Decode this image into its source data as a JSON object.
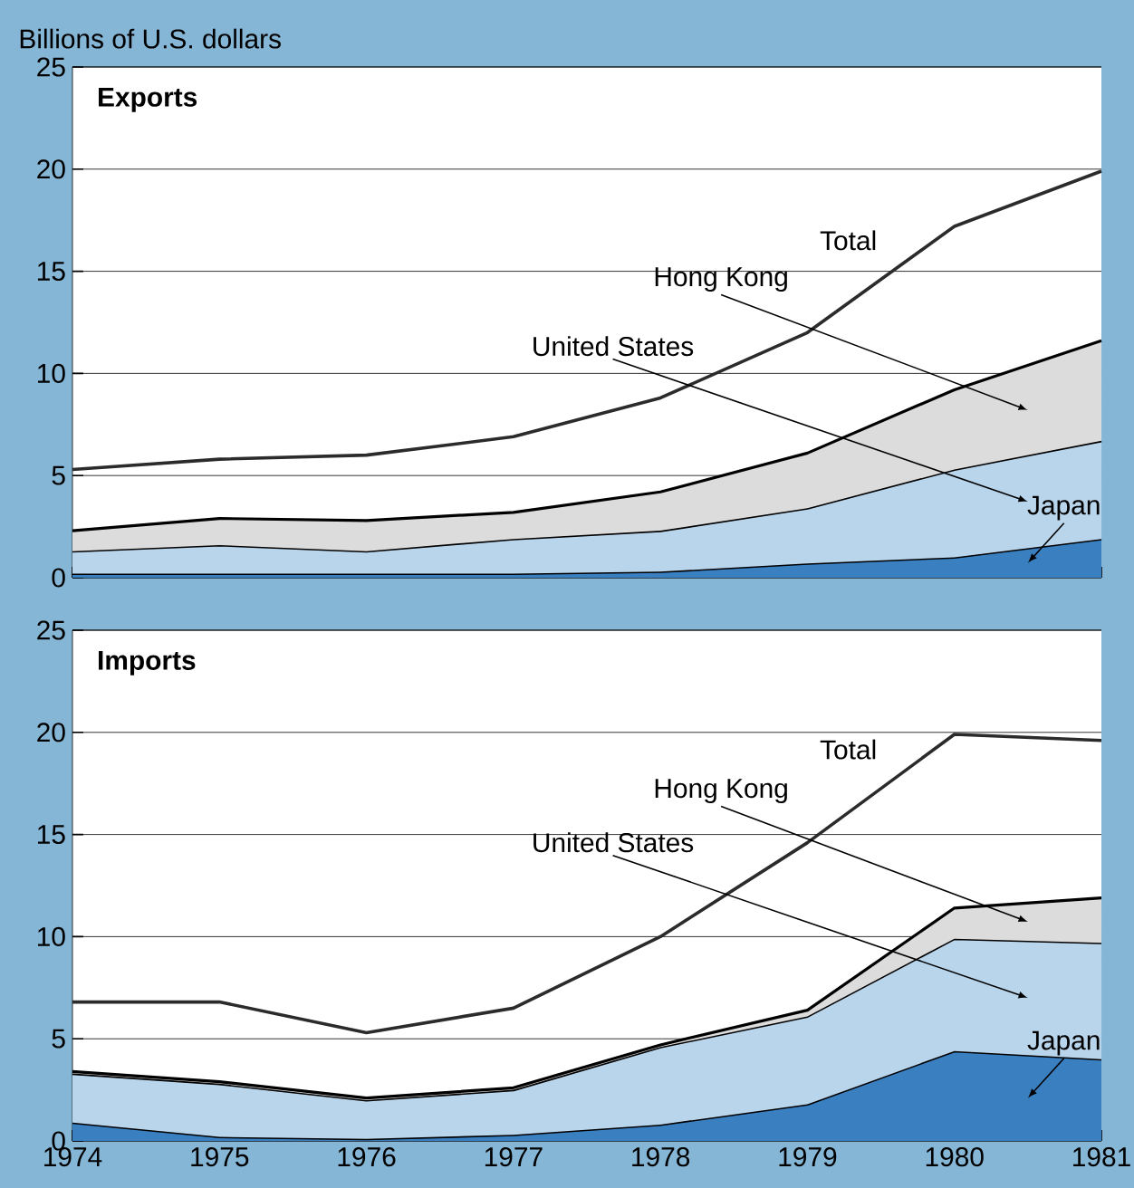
{
  "chart_data": [
    {
      "type": "area",
      "stacked": true,
      "title": "Exports",
      "ylabel": "Billions of U.S. dollars",
      "x": [
        1974,
        1975,
        1976,
        1977,
        1978,
        1979,
        1980,
        1981
      ],
      "xlim": [
        1974,
        1981
      ],
      "xticks": [
        1974,
        1975,
        1976,
        1977,
        1978,
        1979,
        1980,
        1981
      ],
      "ylim": [
        0,
        25
      ],
      "yticks": [
        0,
        5,
        10,
        15,
        20,
        25
      ],
      "grid": "y",
      "tick_labels": "y",
      "series": [
        {
          "name": "Japan",
          "color": "#3a7fc0",
          "values": [
            0.2,
            0.2,
            0.2,
            0.2,
            0.3,
            0.7,
            1.0,
            1.9
          ]
        },
        {
          "name": "United States",
          "color": "#b9d5ec",
          "values": [
            1.1,
            1.4,
            1.1,
            1.7,
            2.0,
            2.7,
            4.3,
            4.8
          ]
        },
        {
          "name": "Hong Kong",
          "color": "#dcdcdc",
          "values": [
            1.0,
            1.3,
            1.5,
            1.3,
            1.9,
            2.7,
            3.9,
            4.9
          ]
        },
        {
          "name": "Total",
          "type": "line",
          "color": "#2b2b2b",
          "values": [
            5.3,
            5.8,
            6.0,
            6.9,
            8.8,
            12.0,
            17.2,
            19.9
          ]
        }
      ]
    },
    {
      "type": "area",
      "stacked": true,
      "title": "Imports",
      "x": [
        1974,
        1975,
        1976,
        1977,
        1978,
        1979,
        1980,
        1981
      ],
      "xlim": [
        1974,
        1981
      ],
      "xticks": [
        1974,
        1975,
        1976,
        1977,
        1978,
        1979,
        1980,
        1981
      ],
      "ylim": [
        0,
        25
      ],
      "yticks": [
        0,
        5,
        10,
        15,
        20,
        25
      ],
      "grid": "y",
      "series": [
        {
          "name": "Japan",
          "color": "#3a7fc0",
          "values": [
            0.9,
            0.2,
            0.1,
            0.3,
            0.8,
            1.8,
            4.4,
            4.0
          ]
        },
        {
          "name": "United States",
          "color": "#b9d5ec",
          "values": [
            2.4,
            2.6,
            1.9,
            2.2,
            3.8,
            4.3,
            5.5,
            5.7
          ]
        },
        {
          "name": "Hong Kong",
          "color": "#dcdcdc",
          "values": [
            0.1,
            0.1,
            0.1,
            0.1,
            0.1,
            0.3,
            1.5,
            2.2
          ]
        },
        {
          "name": "Total",
          "type": "line",
          "color": "#2b2b2b",
          "values": [
            6.8,
            6.8,
            5.3,
            6.5,
            10.0,
            14.6,
            19.9,
            19.6
          ]
        }
      ]
    }
  ]
}
